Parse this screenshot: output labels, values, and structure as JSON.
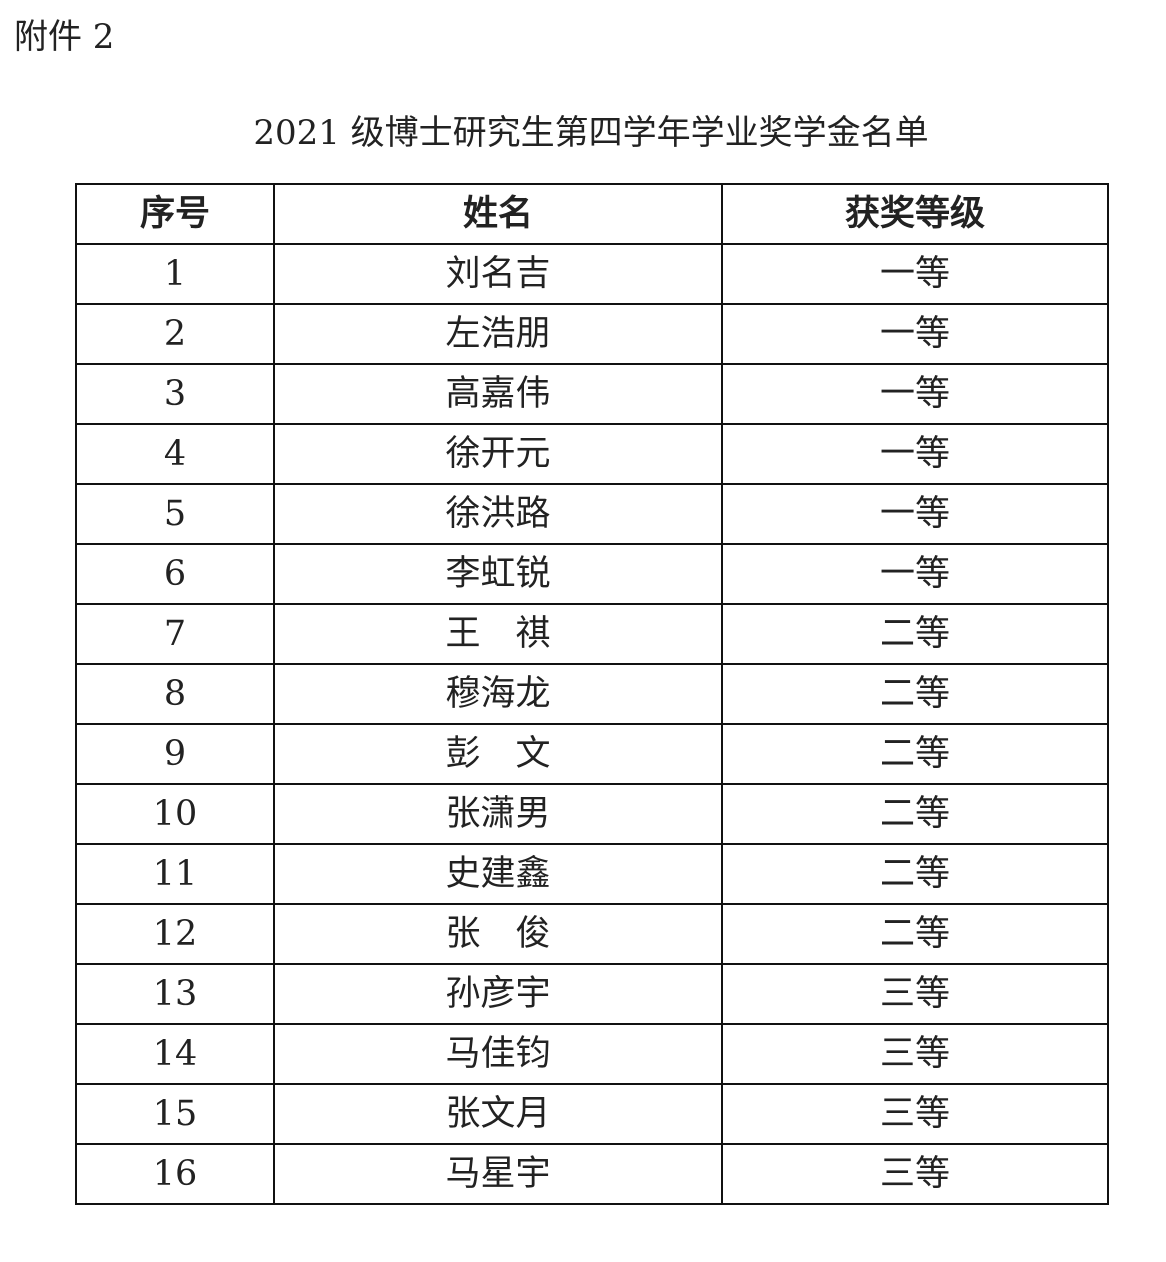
{
  "attachment_label": "附件 2",
  "title": "2021 级博士研究生第四学年学业奖学金名单",
  "table": {
    "headers": [
      "序号",
      "姓名",
      "获奖等级"
    ],
    "rows": [
      [
        "1",
        "刘名吉",
        "一等"
      ],
      [
        "2",
        "左浩朋",
        "一等"
      ],
      [
        "3",
        "高嘉伟",
        "一等"
      ],
      [
        "4",
        "徐开元",
        "一等"
      ],
      [
        "5",
        "徐洪路",
        "一等"
      ],
      [
        "6",
        "李虹锐",
        "一等"
      ],
      [
        "7",
        "王　祺",
        "二等"
      ],
      [
        "8",
        "穆海龙",
        "二等"
      ],
      [
        "9",
        "彭　文",
        "二等"
      ],
      [
        "10",
        "张潇男",
        "二等"
      ],
      [
        "11",
        "史建鑫",
        "二等"
      ],
      [
        "12",
        "张　俊",
        "二等"
      ],
      [
        "13",
        "孙彦宇",
        "三等"
      ],
      [
        "14",
        "马佳钧",
        "三等"
      ],
      [
        "15",
        "张文月",
        "三等"
      ],
      [
        "16",
        "马星宇",
        "三等"
      ]
    ]
  }
}
